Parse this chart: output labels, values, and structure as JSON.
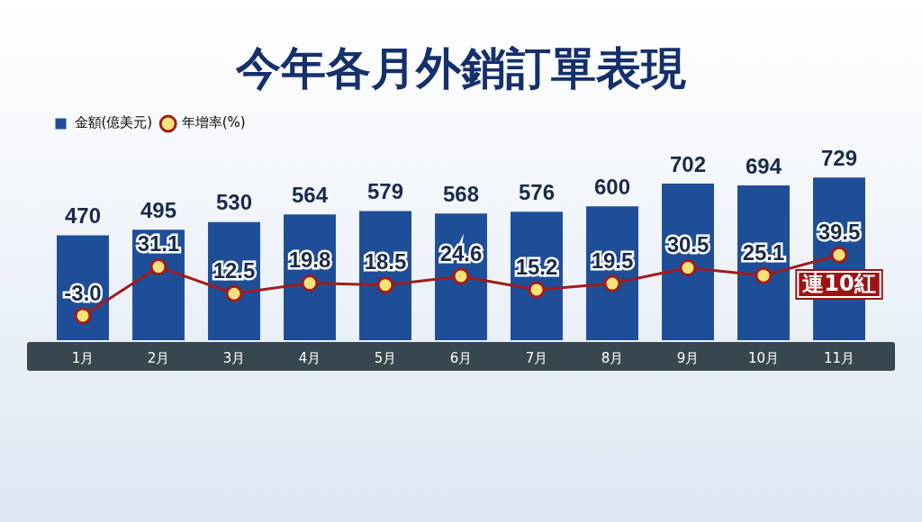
{
  "chart_data": {
    "type": "bar",
    "title": "今年各月外銷訂單表現",
    "categories": [
      "1月",
      "2月",
      "3月",
      "4月",
      "5月",
      "6月",
      "7月",
      "8月",
      "9月",
      "10月",
      "11月"
    ],
    "series": [
      {
        "name": "金額(億美元)",
        "color": "#1f4e99",
        "values": [
          470,
          495,
          530,
          564,
          579,
          568,
          576,
          600,
          702,
          694,
          729
        ]
      },
      {
        "name": "年增率(%)",
        "type": "line",
        "axis": "y2",
        "color": "#a01c1c",
        "values": [
          -3.0,
          31.1,
          12.5,
          19.8,
          18.5,
          24.6,
          15.2,
          19.5,
          30.5,
          25.1,
          39.5
        ],
        "value_labels": [
          "-3.0",
          "31.1",
          "12.5",
          "19.8",
          "18.5",
          "24.6",
          "15.2",
          "19.5",
          "30.5",
          "25.1",
          "39.5"
        ]
      }
    ],
    "data_labels": true,
    "marker": "circle",
    "legend": "top left",
    "grid": false,
    "annotations": [
      "連10紅"
    ]
  }
}
